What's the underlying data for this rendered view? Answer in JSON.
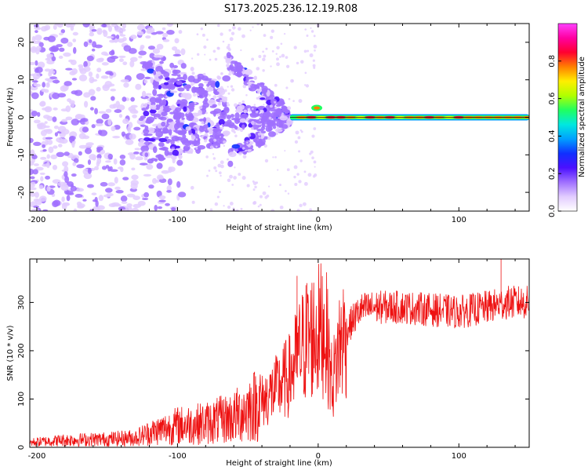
{
  "figure_title": "S173.2025.236.12.19.R08",
  "colors": {
    "snr_line": "#ee1111",
    "background": "#ffffff",
    "axis": "#000000",
    "colormap": [
      "#ffffff",
      "#e2ccff",
      "#a070ff",
      "#4b10ff",
      "#1030ff",
      "#00a0ff",
      "#00e8e0",
      "#20ff60",
      "#b0ff00",
      "#ffee00",
      "#ff8000",
      "#ff0030",
      "#ff00a0",
      "#ff40ff"
    ]
  },
  "chart_data": [
    {
      "id": "spectrogram",
      "type": "heatmap",
      "title": "",
      "xlabel": "Height of straight line (km)",
      "ylabel": "Frequency (Hz)",
      "xlim": [
        -205,
        150
      ],
      "ylim": [
        -25,
        25
      ],
      "xticks": [
        -200,
        -100,
        0,
        100
      ],
      "yticks": [
        -20,
        -10,
        0,
        10,
        20
      ],
      "xtick_labels": [
        "-200",
        "-100",
        "0",
        "100"
      ],
      "ytick_labels": [
        "-20",
        "-10",
        "0",
        "10",
        "20"
      ],
      "colorbar": {
        "label": "Normalized spectral amplitude",
        "range": [
          0,
          1
        ],
        "ticks": [
          0.0,
          0.2,
          0.4,
          0.6,
          0.8
        ],
        "tick_labels": [
          "0.0",
          "0.2",
          "0.4",
          "0.6",
          "0.8"
        ]
      },
      "features": {
        "noise_region_x": [
          -205,
          -20
        ],
        "diverging_arms_start_x": -120,
        "converge_x": -20,
        "carrier_line_start_x": -20,
        "carrier_line_end_x": 150,
        "carrier_frequency_hz": 0,
        "carrier_amplitude_peak": 0.9
      }
    },
    {
      "id": "snr",
      "type": "line",
      "title": "",
      "xlabel": "Height of straight line (km)",
      "ylabel": "SNR (10 * v/v)",
      "xlim": [
        -205,
        150
      ],
      "ylim": [
        0,
        390
      ],
      "xticks": [
        -200,
        -100,
        0,
        100
      ],
      "yticks": [
        0,
        100,
        200,
        300
      ],
      "xtick_labels": [
        "-200",
        "-100",
        "0",
        "100"
      ],
      "ytick_labels": [
        "0",
        "100",
        "200",
        "300"
      ],
      "series": [
        {
          "name": "SNR",
          "x": [
            -205,
            -180,
            -150,
            -130,
            -120,
            -100,
            -80,
            -60,
            -50,
            -40,
            -30,
            -20,
            -15,
            -10,
            -5,
            0,
            5,
            10,
            15,
            20,
            25,
            30,
            40,
            60,
            80,
            100,
            120,
            135,
            150
          ],
          "values": [
            10,
            15,
            17,
            20,
            30,
            45,
            50,
            62,
            80,
            95,
            120,
            150,
            185,
            215,
            230,
            240,
            250,
            130,
            210,
            240,
            265,
            285,
            290,
            290,
            285,
            280,
            290,
            300,
            300
          ],
          "spikes": [
            {
              "x": -15,
              "value": 355
            },
            {
              "x": -8,
              "value": 340
            },
            {
              "x": 130,
              "value": 390
            }
          ]
        }
      ]
    }
  ]
}
